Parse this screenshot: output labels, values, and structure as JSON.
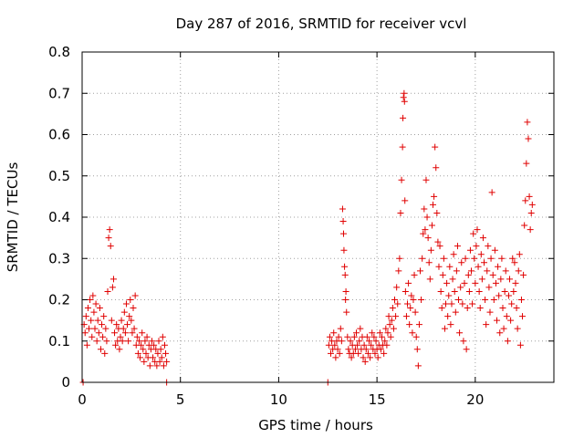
{
  "chart_data": {
    "type": "scatter",
    "title": "Day 287 of 2016, SRMTID for receiver vcvl",
    "xlabel": "GPS time / hours",
    "ylabel": "SRMTID / TECUs",
    "xlim": [
      0,
      24
    ],
    "ylim": [
      0,
      0.8
    ],
    "x_ticks": [
      0,
      5,
      10,
      15,
      20
    ],
    "y_ticks": [
      0,
      0.1,
      0.2,
      0.3,
      0.4,
      0.5,
      0.6,
      0.7,
      0.8
    ],
    "x_tick_labels": [
      "0",
      "5",
      "10",
      "15",
      "20"
    ],
    "y_tick_labels": [
      "0",
      "0.1",
      "0.2",
      "0.3",
      "0.4",
      "0.5",
      "0.6",
      "0.7",
      "0.8"
    ],
    "grid": true,
    "marker": "+",
    "color": "#e00000",
    "series": [
      {
        "name": "SRMTID",
        "points": [
          [
            0.05,
            0.0
          ],
          [
            0.1,
            0.14
          ],
          [
            0.15,
            0.12
          ],
          [
            0.2,
            0.16
          ],
          [
            0.25,
            0.09
          ],
          [
            0.3,
            0.18
          ],
          [
            0.35,
            0.13
          ],
          [
            0.4,
            0.2
          ],
          [
            0.45,
            0.15
          ],
          [
            0.5,
            0.11
          ],
          [
            0.55,
            0.21
          ],
          [
            0.6,
            0.17
          ],
          [
            0.65,
            0.13
          ],
          [
            0.7,
            0.19
          ],
          [
            0.75,
            0.1
          ],
          [
            0.8,
            0.15
          ],
          [
            0.85,
            0.12
          ],
          [
            0.9,
            0.18
          ],
          [
            0.95,
            0.08
          ],
          [
            1.0,
            0.14
          ],
          [
            1.05,
            0.11
          ],
          [
            1.1,
            0.16
          ],
          [
            1.15,
            0.07
          ],
          [
            1.2,
            0.13
          ],
          [
            1.25,
            0.1
          ],
          [
            1.3,
            0.22
          ],
          [
            1.35,
            0.35
          ],
          [
            1.4,
            0.37
          ],
          [
            1.45,
            0.33
          ],
          [
            1.5,
            0.15
          ],
          [
            1.55,
            0.23
          ],
          [
            1.6,
            0.25
          ],
          [
            1.65,
            0.12
          ],
          [
            1.7,
            0.09
          ],
          [
            1.75,
            0.14
          ],
          [
            1.8,
            0.1
          ],
          [
            1.85,
            0.13
          ],
          [
            1.9,
            0.08
          ],
          [
            1.95,
            0.11
          ],
          [
            2.0,
            0.15
          ],
          [
            2.05,
            0.1
          ],
          [
            2.1,
            0.13
          ],
          [
            2.15,
            0.17
          ],
          [
            2.2,
            0.12
          ],
          [
            2.25,
            0.19
          ],
          [
            2.3,
            0.14
          ],
          [
            2.35,
            0.1
          ],
          [
            2.4,
            0.16
          ],
          [
            2.45,
            0.2
          ],
          [
            2.5,
            0.15
          ],
          [
            2.55,
            0.12
          ],
          [
            2.6,
            0.18
          ],
          [
            2.65,
            0.13
          ],
          [
            2.7,
            0.21
          ],
          [
            2.75,
            0.09
          ],
          [
            2.8,
            0.11
          ],
          [
            2.85,
            0.07
          ],
          [
            2.9,
            0.1
          ],
          [
            2.95,
            0.06
          ],
          [
            3.0,
            0.09
          ],
          [
            3.05,
            0.12
          ],
          [
            3.1,
            0.08
          ],
          [
            3.15,
            0.05
          ],
          [
            3.2,
            0.1
          ],
          [
            3.25,
            0.07
          ],
          [
            3.3,
            0.11
          ],
          [
            3.35,
            0.06
          ],
          [
            3.4,
            0.09
          ],
          [
            3.45,
            0.04
          ],
          [
            3.5,
            0.08
          ],
          [
            3.55,
            0.1
          ],
          [
            3.6,
            0.06
          ],
          [
            3.65,
            0.09
          ],
          [
            3.7,
            0.05
          ],
          [
            3.75,
            0.08
          ],
          [
            3.8,
            0.04
          ],
          [
            3.85,
            0.07
          ],
          [
            3.9,
            0.1
          ],
          [
            3.95,
            0.05
          ],
          [
            4.0,
            0.08
          ],
          [
            4.05,
            0.06
          ],
          [
            4.1,
            0.11
          ],
          [
            4.15,
            0.04
          ],
          [
            4.2,
            0.09
          ],
          [
            4.25,
            0.07
          ],
          [
            4.3,
            0.05
          ],
          [
            4.3,
            0.0
          ],
          [
            12.5,
            0.0
          ],
          [
            12.55,
            0.09
          ],
          [
            12.6,
            0.11
          ],
          [
            12.65,
            0.07
          ],
          [
            12.7,
            0.1
          ],
          [
            12.75,
            0.08
          ],
          [
            12.8,
            0.12
          ],
          [
            12.85,
            0.09
          ],
          [
            12.9,
            0.06
          ],
          [
            12.95,
            0.1
          ],
          [
            13.0,
            0.08
          ],
          [
            13.05,
            0.11
          ],
          [
            13.1,
            0.07
          ],
          [
            13.15,
            0.13
          ],
          [
            13.2,
            0.1
          ],
          [
            13.25,
            0.42
          ],
          [
            13.28,
            0.39
          ],
          [
            13.3,
            0.36
          ],
          [
            13.32,
            0.32
          ],
          [
            13.35,
            0.28
          ],
          [
            13.38,
            0.26
          ],
          [
            13.4,
            0.2
          ],
          [
            13.42,
            0.22
          ],
          [
            13.45,
            0.17
          ],
          [
            13.5,
            0.11
          ],
          [
            13.55,
            0.08
          ],
          [
            13.6,
            0.07
          ],
          [
            13.65,
            0.1
          ],
          [
            13.7,
            0.06
          ],
          [
            13.75,
            0.09
          ],
          [
            13.8,
            0.07
          ],
          [
            13.85,
            0.11
          ],
          [
            13.9,
            0.08
          ],
          [
            13.95,
            0.12
          ],
          [
            14.0,
            0.09
          ],
          [
            14.05,
            0.07
          ],
          [
            14.1,
            0.1
          ],
          [
            14.15,
            0.13
          ],
          [
            14.2,
            0.08
          ],
          [
            14.25,
            0.11
          ],
          [
            14.3,
            0.06
          ],
          [
            14.35,
            0.09
          ],
          [
            14.4,
            0.05
          ],
          [
            14.45,
            0.08
          ],
          [
            14.5,
            0.11
          ],
          [
            14.55,
            0.07
          ],
          [
            14.6,
            0.1
          ],
          [
            14.65,
            0.06
          ],
          [
            14.7,
            0.09
          ],
          [
            14.75,
            0.12
          ],
          [
            14.8,
            0.08
          ],
          [
            14.85,
            0.11
          ],
          [
            14.9,
            0.07
          ],
          [
            14.95,
            0.1
          ],
          [
            15.0,
            0.08
          ],
          [
            15.05,
            0.06
          ],
          [
            15.1,
            0.09
          ],
          [
            15.15,
            0.12
          ],
          [
            15.2,
            0.08
          ],
          [
            15.25,
            0.11
          ],
          [
            15.3,
            0.09
          ],
          [
            15.35,
            0.07
          ],
          [
            15.4,
            0.1
          ],
          [
            15.45,
            0.13
          ],
          [
            15.5,
            0.09
          ],
          [
            15.55,
            0.12
          ],
          [
            15.6,
            0.16
          ],
          [
            15.65,
            0.14
          ],
          [
            15.7,
            0.11
          ],
          [
            15.75,
            0.15
          ],
          [
            15.8,
            0.18
          ],
          [
            15.85,
            0.13
          ],
          [
            15.9,
            0.2
          ],
          [
            15.95,
            0.16
          ],
          [
            16.0,
            0.23
          ],
          [
            16.05,
            0.19
          ],
          [
            16.1,
            0.27
          ],
          [
            16.15,
            0.3
          ],
          [
            16.2,
            0.41
          ],
          [
            16.25,
            0.49
          ],
          [
            16.3,
            0.57
          ],
          [
            16.32,
            0.64
          ],
          [
            16.35,
            0.69
          ],
          [
            16.38,
            0.7
          ],
          [
            16.4,
            0.68
          ],
          [
            16.42,
            0.44
          ],
          [
            16.45,
            0.22
          ],
          [
            16.5,
            0.16
          ],
          [
            16.55,
            0.19
          ],
          [
            16.6,
            0.24
          ],
          [
            16.65,
            0.14
          ],
          [
            16.7,
            0.18
          ],
          [
            16.75,
            0.21
          ],
          [
            16.8,
            0.12
          ],
          [
            16.85,
            0.2
          ],
          [
            16.9,
            0.26
          ],
          [
            16.95,
            0.17
          ],
          [
            17.0,
            0.11
          ],
          [
            17.05,
            0.08
          ],
          [
            17.1,
            0.04
          ],
          [
            17.15,
            0.14
          ],
          [
            17.2,
            0.27
          ],
          [
            17.25,
            0.2
          ],
          [
            17.3,
            0.3
          ],
          [
            17.35,
            0.36
          ],
          [
            17.4,
            0.42
          ],
          [
            17.45,
            0.37
          ],
          [
            17.5,
            0.49
          ],
          [
            17.55,
            0.4
          ],
          [
            17.6,
            0.35
          ],
          [
            17.65,
            0.29
          ],
          [
            17.7,
            0.25
          ],
          [
            17.75,
            0.32
          ],
          [
            17.8,
            0.38
          ],
          [
            17.85,
            0.43
          ],
          [
            17.9,
            0.45
          ],
          [
            17.95,
            0.57
          ],
          [
            18.0,
            0.52
          ],
          [
            18.05,
            0.41
          ],
          [
            18.1,
            0.34
          ],
          [
            18.15,
            0.28
          ],
          [
            18.2,
            0.33
          ],
          [
            18.25,
            0.22
          ],
          [
            18.3,
            0.18
          ],
          [
            18.35,
            0.26
          ],
          [
            18.4,
            0.3
          ],
          [
            18.45,
            0.13
          ],
          [
            18.5,
            0.19
          ],
          [
            18.55,
            0.24
          ],
          [
            18.6,
            0.16
          ],
          [
            18.65,
            0.21
          ],
          [
            18.7,
            0.28
          ],
          [
            18.75,
            0.14
          ],
          [
            18.8,
            0.19
          ],
          [
            18.85,
            0.25
          ],
          [
            18.9,
            0.31
          ],
          [
            18.95,
            0.22
          ],
          [
            19.0,
            0.17
          ],
          [
            19.05,
            0.27
          ],
          [
            19.1,
            0.33
          ],
          [
            19.15,
            0.2
          ],
          [
            19.2,
            0.12
          ],
          [
            19.25,
            0.23
          ],
          [
            19.3,
            0.29
          ],
          [
            19.35,
            0.19
          ],
          [
            19.4,
            0.1
          ],
          [
            19.45,
            0.24
          ],
          [
            19.5,
            0.3
          ],
          [
            19.55,
            0.08
          ],
          [
            19.6,
            0.18
          ],
          [
            19.65,
            0.26
          ],
          [
            19.7,
            0.22
          ],
          [
            19.75,
            0.32
          ],
          [
            19.8,
            0.27
          ],
          [
            19.85,
            0.19
          ],
          [
            19.9,
            0.36
          ],
          [
            19.95,
            0.3
          ],
          [
            20.0,
            0.24
          ],
          [
            20.05,
            0.33
          ],
          [
            20.1,
            0.37
          ],
          [
            20.15,
            0.28
          ],
          [
            20.2,
            0.22
          ],
          [
            20.25,
            0.18
          ],
          [
            20.3,
            0.31
          ],
          [
            20.35,
            0.25
          ],
          [
            20.4,
            0.35
          ],
          [
            20.45,
            0.29
          ],
          [
            20.5,
            0.2
          ],
          [
            20.55,
            0.14
          ],
          [
            20.6,
            0.27
          ],
          [
            20.65,
            0.33
          ],
          [
            20.7,
            0.23
          ],
          [
            20.75,
            0.17
          ],
          [
            20.8,
            0.3
          ],
          [
            20.85,
            0.46
          ],
          [
            20.9,
            0.26
          ],
          [
            20.95,
            0.2
          ],
          [
            21.0,
            0.32
          ],
          [
            21.05,
            0.24
          ],
          [
            21.1,
            0.15
          ],
          [
            21.15,
            0.28
          ],
          [
            21.2,
            0.21
          ],
          [
            21.25,
            0.12
          ],
          [
            21.3,
            0.25
          ],
          [
            21.35,
            0.3
          ],
          [
            21.4,
            0.18
          ],
          [
            21.45,
            0.13
          ],
          [
            21.5,
            0.22
          ],
          [
            21.55,
            0.27
          ],
          [
            21.6,
            0.16
          ],
          [
            21.65,
            0.1
          ],
          [
            21.7,
            0.21
          ],
          [
            21.75,
            0.25
          ],
          [
            21.8,
            0.15
          ],
          [
            21.85,
            0.19
          ],
          [
            21.9,
            0.3
          ],
          [
            21.95,
            0.22
          ],
          [
            22.0,
            0.29
          ],
          [
            22.05,
            0.24
          ],
          [
            22.1,
            0.18
          ],
          [
            22.15,
            0.13
          ],
          [
            22.2,
            0.27
          ],
          [
            22.25,
            0.31
          ],
          [
            22.3,
            0.09
          ],
          [
            22.35,
            0.2
          ],
          [
            22.4,
            0.16
          ],
          [
            22.45,
            0.26
          ],
          [
            22.5,
            0.38
          ],
          [
            22.55,
            0.44
          ],
          [
            22.6,
            0.53
          ],
          [
            22.65,
            0.63
          ],
          [
            22.7,
            0.59
          ],
          [
            22.75,
            0.45
          ],
          [
            22.8,
            0.37
          ],
          [
            22.85,
            0.41
          ],
          [
            22.9,
            0.43
          ]
        ]
      }
    ]
  }
}
